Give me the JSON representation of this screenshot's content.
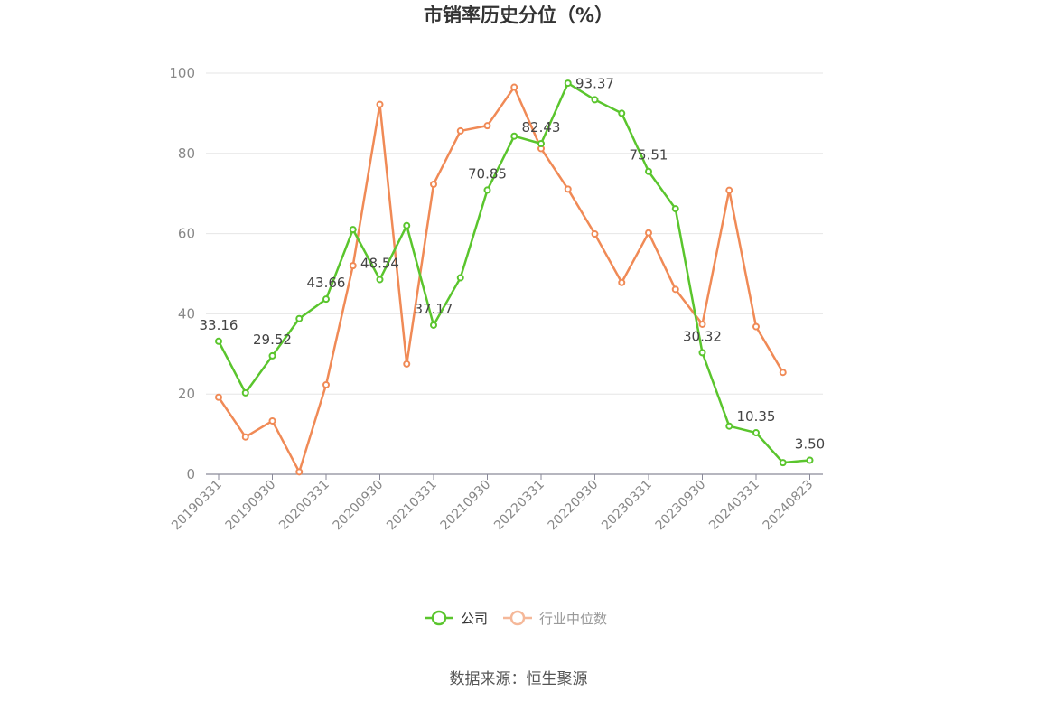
{
  "chart_data": {
    "type": "line",
    "title": "市销率历史分位（%）",
    "source": "数据来源：恒生聚源",
    "ylim": [
      0,
      100
    ],
    "yticks": [
      0,
      20,
      40,
      60,
      80,
      100
    ],
    "grid": true,
    "legend_position": "bottom-center",
    "x_tick_labels": [
      "20190331",
      "20190930",
      "20200331",
      "20200930",
      "20210331",
      "20210930",
      "20220331",
      "20220930",
      "20230331",
      "20230930",
      "20240331",
      "20240823"
    ],
    "x": [
      "20190331",
      "20190630",
      "20190930",
      "20191231",
      "20200331",
      "20200630",
      "20200930",
      "20201231",
      "20210331",
      "20210630",
      "20210930",
      "20211231",
      "20220331",
      "20220630",
      "20220930",
      "20221231",
      "20230331",
      "20230630",
      "20230930",
      "20231231",
      "20240331",
      "20240630",
      "20240823"
    ],
    "series": [
      {
        "name": "公司",
        "color": "#5ac52d",
        "values": [
          33.16,
          20.3,
          29.52,
          38.8,
          43.66,
          61.0,
          48.54,
          62.0,
          37.17,
          49.0,
          70.85,
          84.3,
          82.43,
          97.5,
          93.37,
          90.0,
          75.51,
          66.2,
          30.32,
          12.0,
          10.35,
          2.9,
          3.5
        ],
        "labels": [
          "33.16",
          "",
          "29.52",
          "",
          "43.66",
          "",
          "48.54",
          "",
          "37.17",
          "",
          "70.85",
          "",
          "82.43",
          "",
          "93.37",
          "",
          "75.51",
          "",
          "30.32",
          "",
          "10.35",
          "",
          "3.50"
        ]
      },
      {
        "name": "行业中位数",
        "color": "#f08a56",
        "values": [
          19.2,
          9.3,
          13.3,
          0.6,
          22.3,
          52.0,
          92.2,
          27.5,
          72.3,
          85.6,
          86.9,
          96.5,
          81.2,
          71.1,
          59.9,
          47.8,
          60.2,
          46.1,
          37.4,
          70.8,
          36.8,
          25.4,
          null
        ]
      }
    ]
  }
}
